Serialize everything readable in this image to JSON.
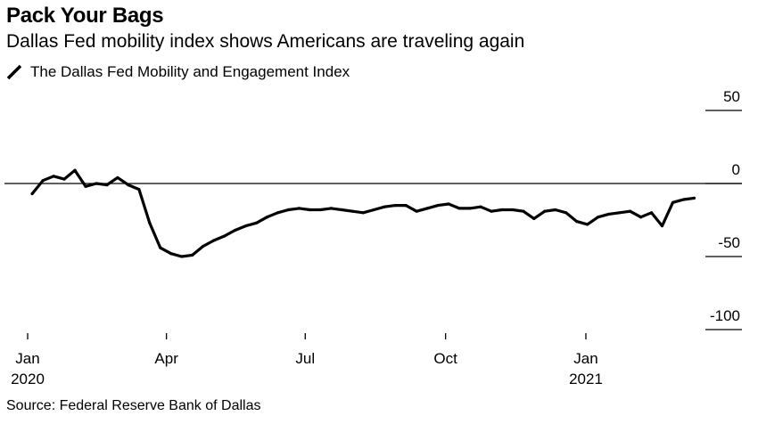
{
  "header": {
    "title": "Pack Your Bags",
    "subtitle": "Dallas Fed mobility index shows Americans are traveling again"
  },
  "legend": {
    "label": "The Dallas Fed Mobility and Engagement Index",
    "icon": "diagonal-line-icon"
  },
  "footer": {
    "source": "Source: Federal Reserve Bank of Dallas"
  },
  "chart_data": {
    "type": "line",
    "title": "Pack Your Bags",
    "subtitle": "Dallas Fed mobility index shows Americans are traveling again",
    "xlabel": "",
    "ylabel": "",
    "ylim": [
      -100,
      50
    ],
    "xlim": [
      "2020-01-01",
      "2021-04-01"
    ],
    "y_axis_side": "right",
    "y_ticks": [
      {
        "value": 50,
        "label": "50"
      },
      {
        "value": 0,
        "label": "0"
      },
      {
        "value": -50,
        "label": "-50"
      },
      {
        "value": -100,
        "label": "-100"
      }
    ],
    "x_ticks": [
      {
        "date": "2020-01-01",
        "label": "Jan",
        "sublabel": "2020"
      },
      {
        "date": "2020-04-01",
        "label": "Apr",
        "sublabel": ""
      },
      {
        "date": "2020-07-01",
        "label": "Jul",
        "sublabel": ""
      },
      {
        "date": "2020-10-01",
        "label": "Oct",
        "sublabel": ""
      },
      {
        "date": "2021-01-01",
        "label": "Jan",
        "sublabel": "2021"
      }
    ],
    "zero_line": true,
    "grid": false,
    "legend_placement": "top-left",
    "line_color": "#000000",
    "series": [
      {
        "name": "The Dallas Fed Mobility and Engagement Index",
        "x": [
          "2020-01-04",
          "2020-01-11",
          "2020-01-18",
          "2020-01-25",
          "2020-02-01",
          "2020-02-08",
          "2020-02-15",
          "2020-02-22",
          "2020-02-29",
          "2020-03-07",
          "2020-03-14",
          "2020-03-21",
          "2020-03-28",
          "2020-04-04",
          "2020-04-11",
          "2020-04-18",
          "2020-04-25",
          "2020-05-02",
          "2020-05-09",
          "2020-05-16",
          "2020-05-23",
          "2020-05-30",
          "2020-06-06",
          "2020-06-13",
          "2020-06-20",
          "2020-06-27",
          "2020-07-04",
          "2020-07-11",
          "2020-07-18",
          "2020-07-25",
          "2020-08-01",
          "2020-08-08",
          "2020-08-15",
          "2020-08-22",
          "2020-08-29",
          "2020-09-05",
          "2020-09-12",
          "2020-09-19",
          "2020-09-26",
          "2020-10-03",
          "2020-10-10",
          "2020-10-17",
          "2020-10-24",
          "2020-10-31",
          "2020-11-07",
          "2020-11-14",
          "2020-11-21",
          "2020-11-28",
          "2020-12-05",
          "2020-12-12",
          "2020-12-19",
          "2020-12-26",
          "2021-01-02",
          "2021-01-09",
          "2021-01-16",
          "2021-01-23",
          "2021-01-30",
          "2021-02-06",
          "2021-02-13",
          "2021-02-20",
          "2021-02-27",
          "2021-03-06",
          "2021-03-13"
        ],
        "values": [
          -7,
          2,
          5,
          3,
          9,
          -2,
          0,
          -1,
          4,
          -1,
          -4,
          -27,
          -44,
          -48,
          -50,
          -49,
          -43,
          -39,
          -36,
          -32,
          -29,
          -27,
          -23,
          -20,
          -18,
          -17,
          -18,
          -18,
          -17,
          -18,
          -19,
          -20,
          -18,
          -16,
          -15,
          -15,
          -19,
          -17,
          -15,
          -14,
          -17,
          -17,
          -16,
          -19,
          -18,
          -18,
          -19,
          -24,
          -19,
          -18,
          -20,
          -26,
          -28,
          -23,
          -21,
          -20,
          -19,
          -23,
          -20,
          -29,
          -13,
          -11,
          -10
        ]
      }
    ]
  }
}
